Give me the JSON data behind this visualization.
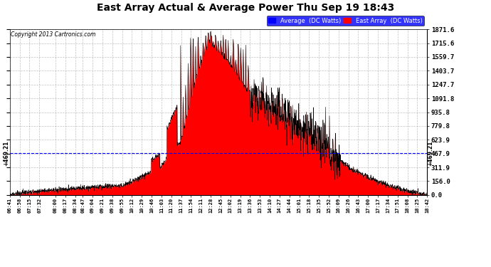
{
  "title": "East Array Actual & Average Power Thu Sep 19 18:43",
  "copyright": "Copyright 2013 Cartronics.com",
  "ylabel_right_ticks": [
    0.0,
    156.0,
    311.9,
    467.9,
    623.9,
    779.8,
    935.8,
    1091.8,
    1247.7,
    1403.7,
    1559.7,
    1715.6,
    1871.6
  ],
  "ymax": 1871.6,
  "ymin": 0.0,
  "average_value": 469.21,
  "average_label": "469.21",
  "legend_avg": "Average  (DC Watts)",
  "legend_east": "East Array  (DC Watts)",
  "fill_color": "#FF0000",
  "line_color": "#000000",
  "avg_line_color": "#0000FF",
  "grid_color": "#999999",
  "x_tick_labels": [
    "06:41",
    "06:58",
    "07:15",
    "07:32",
    "08:00",
    "08:17",
    "08:34",
    "08:47",
    "09:04",
    "09:21",
    "09:38",
    "09:55",
    "10:12",
    "10:29",
    "10:46",
    "11:03",
    "11:20",
    "11:37",
    "11:54",
    "12:11",
    "12:28",
    "12:45",
    "13:02",
    "13:19",
    "13:36",
    "13:53",
    "14:10",
    "14:27",
    "14:44",
    "15:01",
    "15:18",
    "15:35",
    "15:52",
    "16:09",
    "16:26",
    "16:43",
    "17:00",
    "17:17",
    "17:34",
    "17:51",
    "18:08",
    "18:25",
    "18:42"
  ],
  "figsize": [
    6.9,
    3.75
  ],
  "dpi": 100
}
